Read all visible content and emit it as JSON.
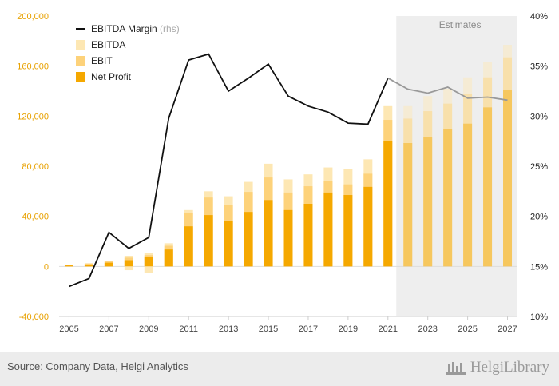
{
  "chart_data": {
    "type": "bar",
    "categories": [
      "2005",
      "2006",
      "2007",
      "2008",
      "2009",
      "2010",
      "2011",
      "2012",
      "2013",
      "2014",
      "2015",
      "2016",
      "2017",
      "2018",
      "2019",
      "2020",
      "2021",
      "2022",
      "2023",
      "2024",
      "2025",
      "2026",
      "2027"
    ],
    "x_tick_labels": [
      "2005",
      "2007",
      "2009",
      "2011",
      "2013",
      "2015",
      "2017",
      "2019",
      "2021",
      "2023",
      "2025",
      "2027"
    ],
    "estimates_from": "2022",
    "estimates_label": "Estimates",
    "series": [
      {
        "name": "EBITDA",
        "axis": "left",
        "color": "#fde7b3",
        "values": [
          1500,
          2600,
          4500,
          8500,
          11000,
          18500,
          45000,
          60000,
          56000,
          67500,
          82000,
          69500,
          73500,
          79000,
          78000,
          85500,
          128000,
          128000,
          136000,
          142000,
          151000,
          163000,
          177000
        ]
      },
      {
        "name": "EBIT",
        "axis": "left",
        "color": "#fdd27a",
        "values": [
          1200,
          2200,
          4000,
          7000,
          9000,
          16500,
          43000,
          55000,
          49000,
          59500,
          71000,
          59000,
          64000,
          68000,
          65500,
          74000,
          117000,
          118000,
          124000,
          130000,
          138000,
          151000,
          167000
        ]
      },
      {
        "name": "Net Profit",
        "axis": "left",
        "color": "#f5a800",
        "values": [
          800,
          1500,
          3000,
          5000,
          7500,
          13500,
          32000,
          41000,
          36500,
          43500,
          53000,
          45000,
          50000,
          59000,
          57000,
          63500,
          100000,
          98500,
          103000,
          110000,
          114000,
          127000,
          141000
        ],
        "negative_values": [
          0,
          0,
          0,
          -3000,
          -5000,
          0,
          0,
          0,
          0,
          0,
          0,
          0,
          0,
          0,
          0,
          0,
          0,
          0,
          0,
          0,
          0,
          0,
          0
        ]
      },
      {
        "name": "EBITDA Margin",
        "axis": "right",
        "type": "line",
        "color": "#111111",
        "values": [
          13.0,
          13.8,
          18.4,
          16.8,
          17.9,
          29.8,
          35.6,
          36.2,
          32.5,
          33.8,
          35.2,
          32.0,
          31.0,
          30.4,
          29.3,
          29.2,
          33.8,
          32.7,
          32.3,
          32.9,
          31.8,
          31.9,
          31.6
        ]
      }
    ],
    "legend": [
      {
        "label": "EBITDA Margin",
        "suffix": "(rhs)",
        "kind": "line"
      },
      {
        "label": "EBITDA",
        "kind": "box"
      },
      {
        "label": "EBIT",
        "kind": "box"
      },
      {
        "label": "Net Profit",
        "kind": "box"
      }
    ],
    "legend_position": "top-left",
    "y_left": {
      "ylim": [
        -40000,
        200000
      ],
      "ticks": [
        -40000,
        0,
        40000,
        80000,
        120000,
        160000,
        200000
      ],
      "tick_labels": [
        "-40,000",
        "0",
        "40,000",
        "80,000",
        "120,000",
        "160,000",
        "200,000"
      ]
    },
    "y_right": {
      "ylim": [
        10,
        40
      ],
      "ticks": [
        10,
        15,
        20,
        25,
        30,
        35,
        40
      ],
      "tick_labels": [
        "10%",
        "15%",
        "20%",
        "25%",
        "30%",
        "35%",
        "40%"
      ]
    },
    "grid": false
  },
  "footer": {
    "source": "Source: Company Data, Helgi Analytics",
    "brand": "HelgiLibrary"
  }
}
